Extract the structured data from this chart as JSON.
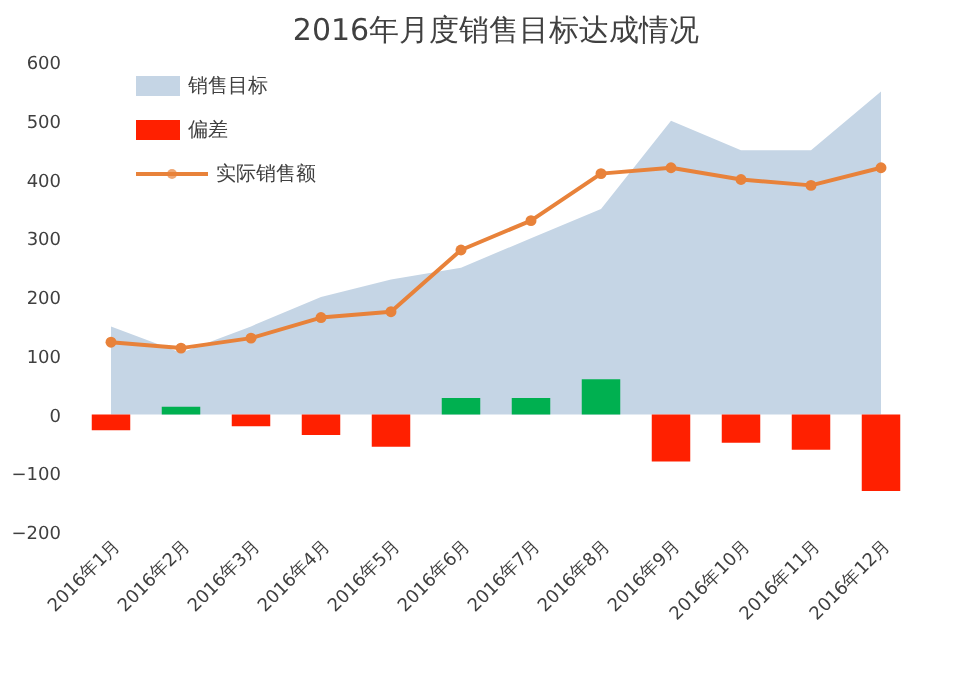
{
  "chart_data": {
    "type": "bar",
    "title": "2016年月度销售目标达成情况",
    "categories": [
      "2016年1月",
      "2016年2月",
      "2016年3月",
      "2016年4月",
      "2016年5月",
      "2016年6月",
      "2016年7月",
      "2016年8月",
      "2016年9月",
      "2016年10月",
      "2016年11月",
      "2016年12月"
    ],
    "series": [
      {
        "name": "销售目标",
        "type": "area",
        "color": "#c5d5e5",
        "values": [
          150,
          105,
          150,
          200,
          230,
          250,
          300,
          350,
          500,
          450,
          450,
          550
        ]
      },
      {
        "name": "偏差",
        "color": "#ff2000",
        "colors": [
          "#ff2000",
          "#00b050",
          "#ff2000",
          "#ff2000",
          "#ff2000",
          "#00b050",
          "#00b050",
          "#00b050",
          "#ff2000",
          "#ff2000",
          "#ff2000",
          "#ff2000"
        ],
        "values": [
          -27,
          13,
          -20,
          -35,
          -55,
          28,
          28,
          60,
          -80,
          -48,
          -60,
          -130
        ]
      },
      {
        "name": "实际销售额",
        "type": "line",
        "color": "#e8823a",
        "marker": "circle",
        "values": [
          123,
          113,
          130,
          165,
          175,
          280,
          330,
          410,
          420,
          400,
          390,
          420
        ]
      }
    ],
    "ylim": [
      -200,
      600
    ],
    "yticks": [
      -200,
      -100,
      0,
      100,
      200,
      300,
      400,
      500,
      600
    ],
    "grid": false,
    "legend": "top left"
  }
}
